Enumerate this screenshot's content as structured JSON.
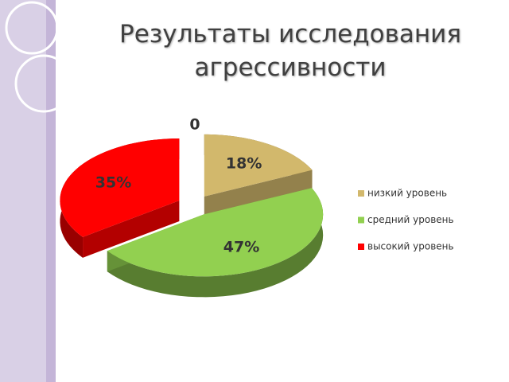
{
  "chart_data": {
    "type": "pie",
    "title": "Результаты исследования агрессивности",
    "categories": [
      "низкий уровень",
      "средний уровень",
      "высокий уровень"
    ],
    "values": [
      18,
      47,
      35
    ],
    "value_labels": [
      "18%",
      "47%",
      "35%"
    ],
    "colors": [
      "#d2b86c",
      "#92d050",
      "#ff0000"
    ],
    "annotations": [
      "0"
    ],
    "legend": "right"
  }
}
